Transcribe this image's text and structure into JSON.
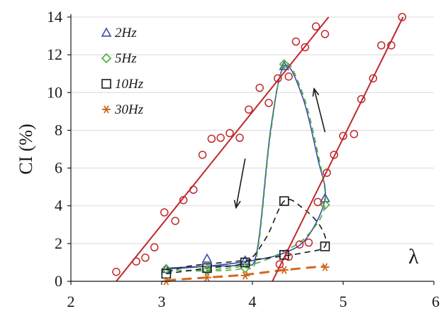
{
  "chart_data": {
    "type": "scatter",
    "ylabel": "CI (%)",
    "xlabel": "",
    "annotation": "λ",
    "xlim": [
      2,
      6
    ],
    "ylim": [
      0,
      14
    ],
    "x_ticks": [
      "2",
      "3",
      "4",
      "5",
      "6"
    ],
    "y_ticks": [
      "0",
      "2",
      "4",
      "6",
      "8",
      "10",
      "12",
      "14"
    ],
    "legend_position": "top-left",
    "series": [
      {
        "name": "2Hz",
        "marker": "triangle",
        "color": "#3a4fa0",
        "points": [
          [
            3.05,
            0.65
          ],
          [
            3.5,
            1.2
          ],
          [
            3.92,
            1.1
          ],
          [
            4.35,
            11.4
          ],
          [
            4.8,
            4.4
          ]
        ]
      },
      {
        "name": "5Hz",
        "marker": "diamond",
        "color": "#4aab3c",
        "points": [
          [
            3.05,
            0.65
          ],
          [
            3.5,
            0.6
          ],
          [
            3.92,
            0.7
          ],
          [
            4.35,
            11.5
          ],
          [
            4.8,
            4.05
          ]
        ]
      },
      {
        "name": "10Hz",
        "marker": "square",
        "color": "#1a1a1a",
        "points": [
          [
            3.05,
            0.4
          ],
          [
            3.5,
            0.7
          ],
          [
            3.92,
            1.0
          ],
          [
            4.35,
            4.25
          ],
          [
            4.35,
            1.4
          ],
          [
            4.8,
            1.85
          ]
        ]
      },
      {
        "name": "30Hz",
        "marker": "asterisk",
        "color": "#d2691e",
        "points": [
          [
            3.05,
            0.0
          ],
          [
            3.5,
            0.2
          ],
          [
            3.92,
            0.3
          ],
          [
            4.35,
            0.6
          ],
          [
            4.8,
            0.75
          ]
        ]
      },
      {
        "marker": "circle",
        "color": "#c0282d",
        "points": [
          [
            2.5,
            0.5
          ],
          [
            2.72,
            1.05
          ],
          [
            2.82,
            1.25
          ],
          [
            2.92,
            1.8
          ],
          [
            3.03,
            3.65
          ],
          [
            3.15,
            3.2
          ],
          [
            3.24,
            4.3
          ],
          [
            3.35,
            4.85
          ],
          [
            3.45,
            6.7
          ],
          [
            3.55,
            7.55
          ],
          [
            3.65,
            7.6
          ],
          [
            3.75,
            7.85
          ],
          [
            3.86,
            7.6
          ],
          [
            3.96,
            9.1
          ],
          [
            4.08,
            10.25
          ],
          [
            4.18,
            9.45
          ],
          [
            4.28,
            10.75
          ],
          [
            4.4,
            10.85
          ],
          [
            4.48,
            12.7
          ],
          [
            4.58,
            12.4
          ],
          [
            4.7,
            13.5
          ],
          [
            4.8,
            13.1
          ],
          [
            4.82,
            5.75
          ],
          [
            4.9,
            6.7
          ],
          [
            5.0,
            7.7
          ],
          [
            5.12,
            7.8
          ],
          [
            5.2,
            9.65
          ],
          [
            5.33,
            10.75
          ],
          [
            5.42,
            12.5
          ],
          [
            5.53,
            12.5
          ],
          [
            5.65,
            14.0
          ],
          [
            4.3,
            0.9
          ],
          [
            4.4,
            1.3
          ],
          [
            4.52,
            1.95
          ],
          [
            4.62,
            2.05
          ],
          [
            4.72,
            4.2
          ]
        ]
      }
    ],
    "trend_lines": [
      {
        "color": "#c0282d",
        "style": "solid",
        "points": [
          [
            2.5,
            0.0
          ],
          [
            4.84,
            14.0
          ]
        ]
      },
      {
        "color": "#c0282d",
        "style": "solid",
        "points": [
          [
            4.22,
            0.0
          ],
          [
            5.66,
            14.0
          ]
        ]
      }
    ],
    "hysteresis_curves": [
      {
        "color": "#3a4fa0",
        "style": "solid",
        "points": [
          [
            3.05,
            0.7
          ],
          [
            3.5,
            0.8
          ],
          [
            3.9,
            0.9
          ],
          [
            4.05,
            1.6
          ],
          [
            4.2,
            8.0
          ],
          [
            4.35,
            11.4
          ],
          [
            4.55,
            9.8
          ],
          [
            4.72,
            6.5
          ],
          [
            4.8,
            4.4
          ],
          [
            4.6,
            2.3
          ],
          [
            4.35,
            1.5
          ],
          [
            4.0,
            1.1
          ],
          [
            3.5,
            0.8
          ],
          [
            3.05,
            0.65
          ]
        ]
      },
      {
        "color": "#4aab3c",
        "style": "dashed",
        "points": [
          [
            3.05,
            0.6
          ],
          [
            3.5,
            0.55
          ],
          [
            3.9,
            0.7
          ],
          [
            4.05,
            1.4
          ],
          [
            4.2,
            7.8
          ],
          [
            4.35,
            11.5
          ],
          [
            4.55,
            10.0
          ],
          [
            4.72,
            6.8
          ],
          [
            4.8,
            4.05
          ],
          [
            4.6,
            2.4
          ],
          [
            4.35,
            1.6
          ],
          [
            4.0,
            0.9
          ],
          [
            3.5,
            0.6
          ],
          [
            3.05,
            0.6
          ]
        ]
      },
      {
        "color": "#1a1a1a",
        "style": "dashed",
        "points": [
          [
            3.05,
            0.4
          ],
          [
            3.5,
            0.7
          ],
          [
            3.92,
            1.0
          ],
          [
            4.15,
            2.3
          ],
          [
            4.35,
            4.25
          ],
          [
            4.55,
            3.9
          ],
          [
            4.75,
            2.9
          ],
          [
            4.8,
            1.85
          ],
          [
            4.55,
            1.5
          ],
          [
            4.2,
            1.25
          ],
          [
            3.8,
            1.05
          ],
          [
            3.3,
            0.8
          ],
          [
            3.05,
            0.45
          ]
        ]
      },
      {
        "color": "#d2691e",
        "style": "dashed",
        "points": [
          [
            3.05,
            0.05
          ],
          [
            3.5,
            0.2
          ],
          [
            3.92,
            0.35
          ],
          [
            4.35,
            0.6
          ],
          [
            4.8,
            0.8
          ]
        ]
      }
    ],
    "arrows": [
      {
        "direction": "down",
        "from": [
          3.92,
          6.5
        ],
        "to": [
          3.82,
          3.9
        ]
      },
      {
        "direction": "up",
        "from": [
          4.8,
          7.9
        ],
        "to": [
          4.68,
          10.2
        ]
      }
    ]
  }
}
